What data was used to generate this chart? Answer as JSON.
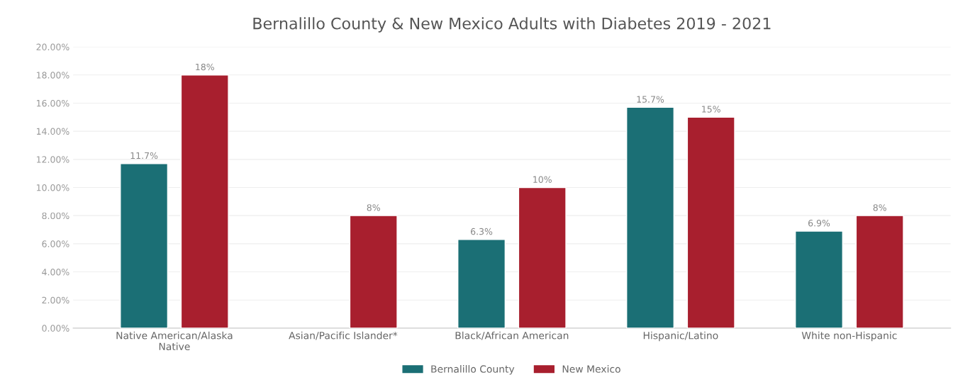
{
  "chart_data": {
    "type": "bar",
    "title": "Bernalillo County & New Mexico Adults with Diabetes 2019 - 2021",
    "categories": [
      "Native American/Alaska\nNative",
      "Asian/Pacific Islander*",
      "Black/African American",
      "Hispanic/Latino",
      "White non-Hispanic"
    ],
    "series": [
      {
        "name": "Bernalillo County",
        "color": "#1b6f75",
        "values": [
          11.7,
          null,
          6.3,
          15.7,
          6.9
        ],
        "value_labels": [
          "11.7%",
          null,
          "6.3%",
          "15.7%",
          "6.9%"
        ]
      },
      {
        "name": "New Mexico",
        "color": "#a81f2e",
        "values": [
          18,
          8,
          10,
          15,
          8
        ],
        "value_labels": [
          "18%",
          "8%",
          "10%",
          "15%",
          "8%"
        ]
      }
    ],
    "ylim": [
      0,
      20
    ],
    "yticks": [
      {
        "value": 0,
        "label": "0.00%"
      },
      {
        "value": 2,
        "label": "2.00%"
      },
      {
        "value": 4,
        "label": "4.00%"
      },
      {
        "value": 6,
        "label": "6.00%"
      },
      {
        "value": 8,
        "label": "8.00%"
      },
      {
        "value": 10,
        "label": "10.00%"
      },
      {
        "value": 12,
        "label": "12.00%"
      },
      {
        "value": 14,
        "label": "14.00%"
      },
      {
        "value": 16,
        "label": "16.00%"
      },
      {
        "value": 18,
        "label": "18.00%"
      },
      {
        "value": 20,
        "label": "20.00%"
      }
    ],
    "grid": "y",
    "legend": "bottom"
  }
}
